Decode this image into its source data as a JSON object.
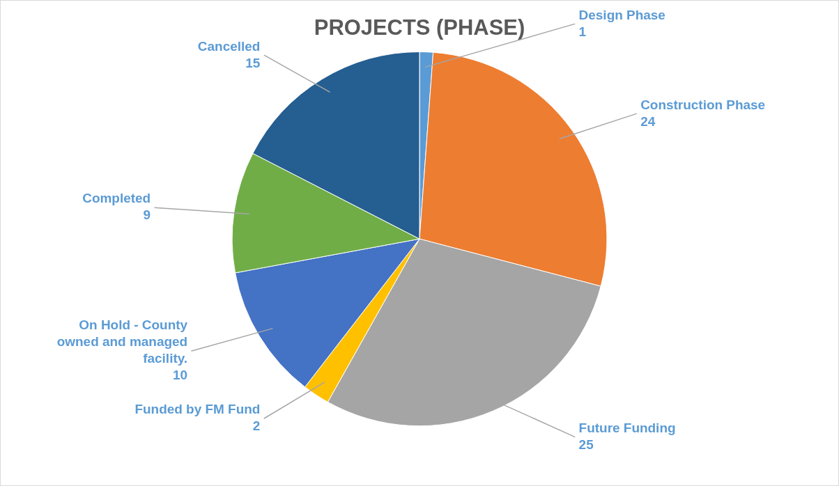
{
  "chart_data": {
    "type": "pie",
    "title": "PROJECTS (PHASE)",
    "categories": [
      "Design Phase",
      "Construction Phase",
      "Future Funding",
      "Funded by FM Fund",
      "On Hold - County owned and managed facility.",
      "Completed",
      "Cancelled"
    ],
    "values": [
      1,
      24,
      25,
      2,
      10,
      9,
      15
    ],
    "colors": [
      "#5b9bd5",
      "#ed7d31",
      "#a5a5a5",
      "#ffc000",
      "#4472c4",
      "#70ad47",
      "#255e91"
    ],
    "data_labels": true,
    "legend": false
  }
}
